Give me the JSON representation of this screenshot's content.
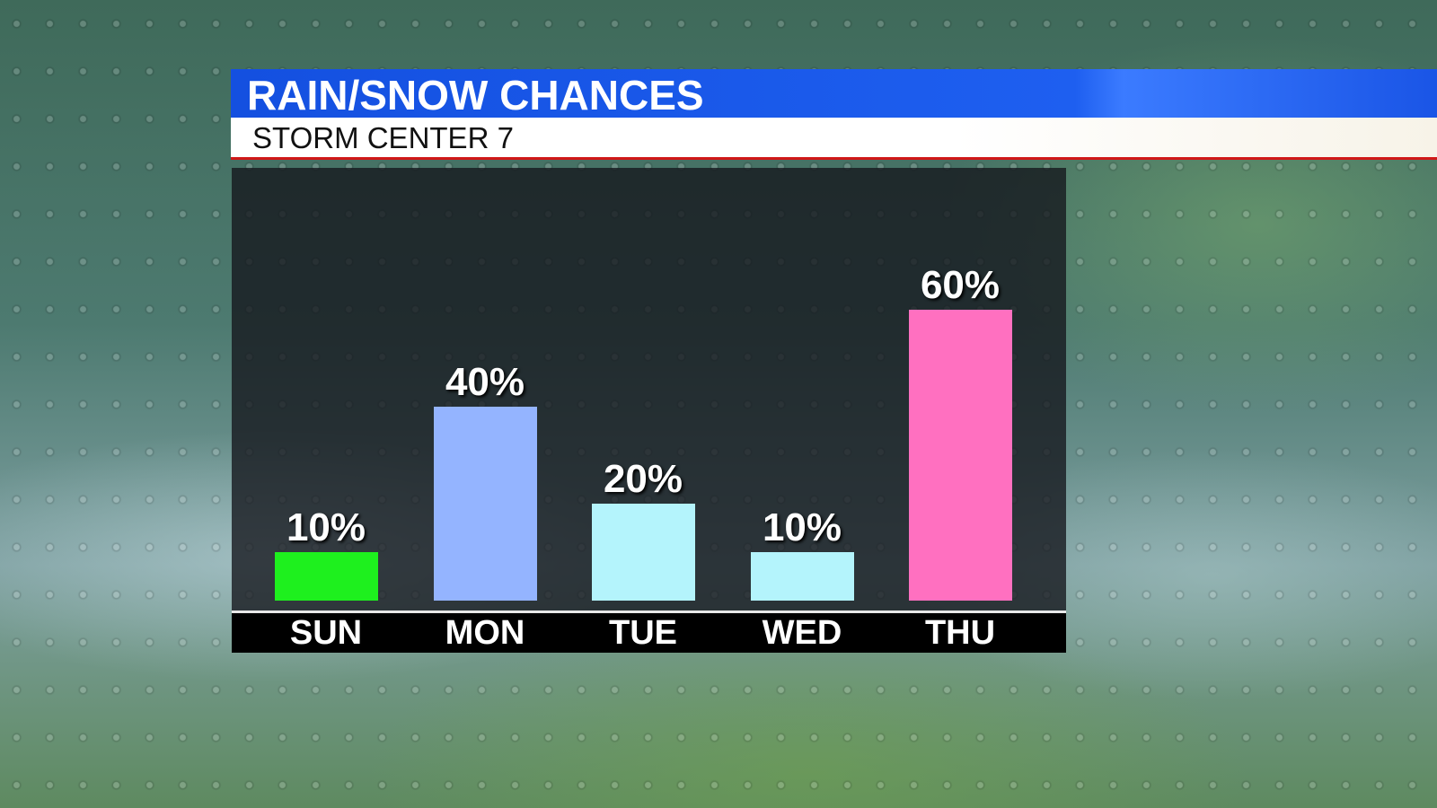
{
  "header": {
    "title": "RAIN/SNOW CHANCES",
    "subtitle": "STORM CENTER 7"
  },
  "chart_data": {
    "type": "bar",
    "categories": [
      "SUN",
      "MON",
      "TUE",
      "WED",
      "THU"
    ],
    "values": [
      10,
      40,
      20,
      10,
      60
    ],
    "value_labels": [
      "10%",
      "40%",
      "20%",
      "10%",
      "60%"
    ],
    "colors": [
      "#1ef01e",
      "#94b4ff",
      "#b4f4fc",
      "#b4f4fc",
      "#ff70c0"
    ],
    "unit": "%",
    "ylim": [
      0,
      60
    ],
    "grid": false
  }
}
